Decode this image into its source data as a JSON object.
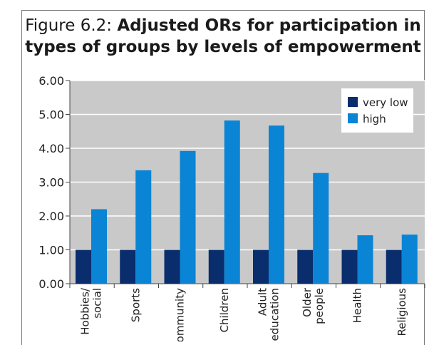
{
  "figure": {
    "label": "Figure 6.2:",
    "title_bold_line1": "Adjusted ORs for participation in",
    "title_bold_line2": "types of groups by levels of empowerment"
  },
  "colors": {
    "plot_bg": "#c9c9c9",
    "very_low": "#0a2d6e",
    "high": "#0a84d4",
    "grid": "#ffffff"
  },
  "chart_data": {
    "type": "bar",
    "title": "Figure 6.2: Adjusted ORs for participation in types of groups by levels of empowerment",
    "categories": [
      [
        "Hobbies/",
        "social"
      ],
      [
        "Sports"
      ],
      [
        "Community"
      ],
      [
        "Children"
      ],
      [
        "Adult",
        "education"
      ],
      [
        "Older",
        "people"
      ],
      [
        "Health"
      ],
      [
        "Religious"
      ]
    ],
    "series": [
      {
        "name": "very low",
        "values": [
          1.0,
          1.0,
          1.0,
          1.0,
          1.0,
          1.0,
          1.0,
          1.0
        ]
      },
      {
        "name": "high",
        "values": [
          2.2,
          3.35,
          3.92,
          4.82,
          4.67,
          3.27,
          1.43,
          1.45
        ]
      }
    ],
    "yticks": [
      "0.00",
      "1.00",
      "2.00",
      "3.00",
      "4.00",
      "5.00",
      "6.00"
    ],
    "ylim": [
      0,
      6
    ],
    "grid": true,
    "legend_position": "top-right"
  }
}
